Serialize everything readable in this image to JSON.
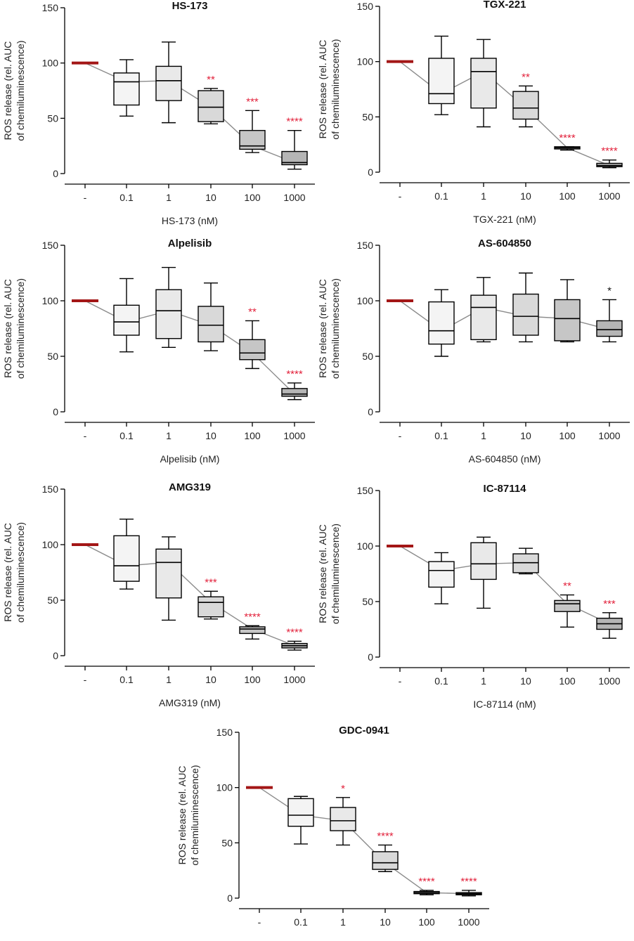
{
  "colors": {
    "control": "#a31616",
    "significant": "#e2203a",
    "nonsignificant": "#111111",
    "trend_line": "#8c8c8c",
    "box_fills": [
      "#f4f4f4",
      "#e9e9e9",
      "#d9d9d9",
      "#c6c6c6",
      "#b5b5b5"
    ]
  },
  "chart_data": [
    {
      "type": "box",
      "title": "HS-173",
      "xlabel": "HS-173 (nM)",
      "ylabel_line1": "ROS release (rel. AUC",
      "ylabel_line2": "of chemiluminescence)",
      "ylim": [
        0,
        150
      ],
      "yticks": [
        "0",
        "50",
        "100",
        "150"
      ],
      "categories": [
        "-",
        "0.1",
        "1",
        "10",
        "100",
        "1000"
      ],
      "control_value": 100,
      "boxes": [
        {
          "min": 52,
          "q1": 62,
          "median": 83,
          "q3": 91,
          "max": 103,
          "sig": ""
        },
        {
          "min": 46,
          "q1": 66,
          "median": 84,
          "q3": 97,
          "max": 119,
          "sig": ""
        },
        {
          "min": 45,
          "q1": 47,
          "median": 60,
          "q3": 75,
          "max": 77,
          "sig": "**"
        },
        {
          "min": 19,
          "q1": 22,
          "median": 25,
          "q3": 39,
          "max": 57,
          "sig": "***"
        },
        {
          "min": 4,
          "q1": 8,
          "median": 10,
          "q3": 20,
          "max": 39,
          "sig": "****"
        }
      ]
    },
    {
      "type": "box",
      "title": "TGX-221",
      "xlabel": "TGX-221 (nM)",
      "ylabel_line1": "ROS release (rel. AUC",
      "ylabel_line2": "of chemiluminescence)",
      "ylim": [
        0,
        150
      ],
      "yticks": [
        "0",
        "50",
        "100",
        "150"
      ],
      "categories": [
        "-",
        "0.1",
        "1",
        "10",
        "100",
        "1000"
      ],
      "control_value": 100,
      "boxes": [
        {
          "min": 52,
          "q1": 62,
          "median": 71,
          "q3": 103,
          "max": 123,
          "sig": ""
        },
        {
          "min": 41,
          "q1": 58,
          "median": 91,
          "q3": 103,
          "max": 120,
          "sig": ""
        },
        {
          "min": 41,
          "q1": 48,
          "median": 58,
          "q3": 73,
          "max": 78,
          "sig": "**"
        },
        {
          "min": 20,
          "q1": 21,
          "median": 22,
          "q3": 23,
          "max": 23,
          "sig": "****"
        },
        {
          "min": 4,
          "q1": 5,
          "median": 6,
          "q3": 8,
          "max": 11,
          "sig": "****"
        }
      ]
    },
    {
      "type": "box",
      "title": "Alpelisib",
      "xlabel": "Alpelisib (nM)",
      "ylabel_line1": "ROS release (rel. AUC",
      "ylabel_line2": "of chemiluminescence)",
      "ylim": [
        0,
        150
      ],
      "yticks": [
        "0",
        "50",
        "100",
        "150"
      ],
      "categories": [
        "-",
        "0.1",
        "1",
        "10",
        "100",
        "1000"
      ],
      "control_value": 100,
      "boxes": [
        {
          "min": 54,
          "q1": 69,
          "median": 81,
          "q3": 96,
          "max": 120,
          "sig": ""
        },
        {
          "min": 58,
          "q1": 66,
          "median": 91,
          "q3": 110,
          "max": 130,
          "sig": ""
        },
        {
          "min": 55,
          "q1": 63,
          "median": 78,
          "q3": 95,
          "max": 116,
          "sig": ""
        },
        {
          "min": 39,
          "q1": 47,
          "median": 53,
          "q3": 65,
          "max": 82,
          "sig": "**"
        },
        {
          "min": 11,
          "q1": 14,
          "median": 16,
          "q3": 21,
          "max": 26,
          "sig": "****"
        }
      ]
    },
    {
      "type": "box",
      "title": "AS-604850",
      "xlabel": "AS-604850 (nM)",
      "ylabel_line1": "ROS release (rel. AUC",
      "ylabel_line2": "of chemiluminescence)",
      "ylim": [
        0,
        150
      ],
      "yticks": [
        "0",
        "50",
        "100",
        "150"
      ],
      "categories": [
        "-",
        "0.1",
        "1",
        "10",
        "100",
        "1000"
      ],
      "control_value": 100,
      "boxes": [
        {
          "min": 50,
          "q1": 61,
          "median": 73,
          "q3": 99,
          "max": 110,
          "sig": ""
        },
        {
          "min": 63,
          "q1": 65,
          "median": 94,
          "q3": 105,
          "max": 121,
          "sig": ""
        },
        {
          "min": 63,
          "q1": 69,
          "median": 86,
          "q3": 106,
          "max": 125,
          "sig": ""
        },
        {
          "min": 63,
          "q1": 64,
          "median": 84,
          "q3": 101,
          "max": 119,
          "sig": ""
        },
        {
          "min": 63,
          "q1": 68,
          "median": 74,
          "q3": 82,
          "max": 101,
          "sig": "*"
        }
      ]
    },
    {
      "type": "box",
      "title": "AMG319",
      "xlabel": "AMG319 (nM)",
      "ylabel_line1": "ROS release (rel. AUC",
      "ylabel_line2": "of chemiluminescence)",
      "ylim": [
        0,
        150
      ],
      "yticks": [
        "0",
        "50",
        "100",
        "150"
      ],
      "categories": [
        "-",
        "0.1",
        "1",
        "10",
        "100",
        "1000"
      ],
      "control_value": 100,
      "boxes": [
        {
          "min": 60,
          "q1": 67,
          "median": 81,
          "q3": 108,
          "max": 123,
          "sig": ""
        },
        {
          "min": 32,
          "q1": 52,
          "median": 84,
          "q3": 96,
          "max": 107,
          "sig": ""
        },
        {
          "min": 33,
          "q1": 35,
          "median": 48,
          "q3": 53,
          "max": 58,
          "sig": "***"
        },
        {
          "min": 15,
          "q1": 20,
          "median": 24,
          "q3": 26,
          "max": 27,
          "sig": "****"
        },
        {
          "min": 5,
          "q1": 7,
          "median": 9,
          "q3": 11,
          "max": 13,
          "sig": "****"
        }
      ]
    },
    {
      "type": "box",
      "title": "IC-87114",
      "xlabel": "IC-87114 (nM)",
      "ylabel_line1": "ROS release (rel. AUC",
      "ylabel_line2": "of chemiluminescence)",
      "ylim": [
        0,
        150
      ],
      "yticks": [
        "0",
        "50",
        "100",
        "150"
      ],
      "categories": [
        "-",
        "0.1",
        "1",
        "10",
        "100",
        "1000"
      ],
      "control_value": 100,
      "boxes": [
        {
          "min": 48,
          "q1": 63,
          "median": 78,
          "q3": 86,
          "max": 94,
          "sig": ""
        },
        {
          "min": 44,
          "q1": 70,
          "median": 84,
          "q3": 103,
          "max": 108,
          "sig": ""
        },
        {
          "min": 75,
          "q1": 76,
          "median": 85,
          "q3": 93,
          "max": 98,
          "sig": ""
        },
        {
          "min": 27,
          "q1": 41,
          "median": 48,
          "q3": 51,
          "max": 56,
          "sig": "**"
        },
        {
          "min": 17,
          "q1": 25,
          "median": 30,
          "q3": 35,
          "max": 40,
          "sig": "***"
        }
      ]
    },
    {
      "type": "box",
      "title": "GDC-0941",
      "xlabel": "GDC-0941 (nM)",
      "ylabel_line1": "ROS release (rel. AUC",
      "ylabel_line2": "of chemiluminescence)",
      "ylim": [
        0,
        150
      ],
      "yticks": [
        "0",
        "50",
        "100",
        "150"
      ],
      "categories": [
        "-",
        "0.1",
        "1",
        "10",
        "100",
        "1000"
      ],
      "control_value": 100,
      "boxes": [
        {
          "min": 49,
          "q1": 65,
          "median": 75,
          "q3": 90,
          "max": 92,
          "sig": ""
        },
        {
          "min": 48,
          "q1": 61,
          "median": 70,
          "q3": 82,
          "max": 91,
          "sig": "*"
        },
        {
          "min": 24,
          "q1": 26,
          "median": 32,
          "q3": 42,
          "max": 48,
          "sig": "****"
        },
        {
          "min": 3,
          "q1": 4,
          "median": 5,
          "q3": 6,
          "max": 7,
          "sig": "****"
        },
        {
          "min": 2,
          "q1": 3,
          "median": 4,
          "q3": 5,
          "max": 7,
          "sig": "****"
        }
      ]
    }
  ]
}
